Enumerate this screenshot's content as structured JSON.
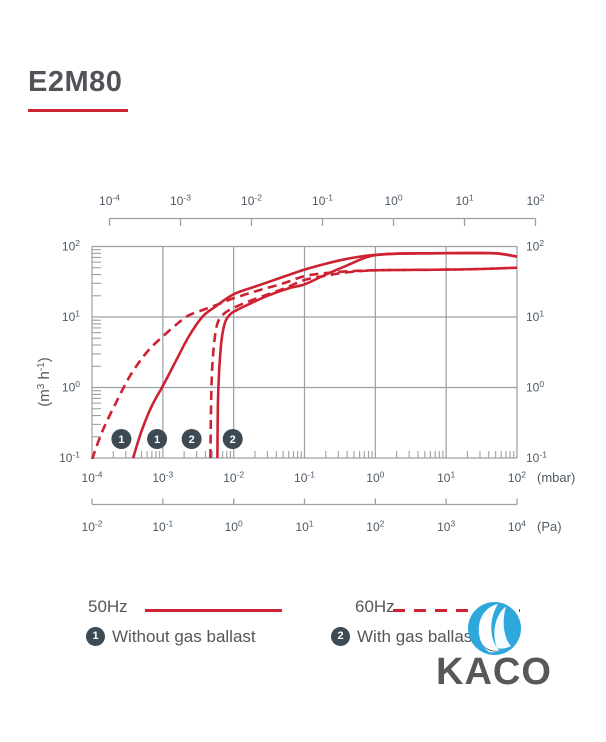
{
  "header": {
    "title": "E2M80"
  },
  "colors": {
    "accent_red": "#CE2132",
    "grid_gray": "#99A0A6",
    "axis_text": "#4E5964",
    "marker_fill": "#3D4A53",
    "logo_blue": "#2EA7DC",
    "logo_text": "#57585B"
  },
  "chart_data": {
    "type": "line",
    "x_scale": "log",
    "y_scale": "log",
    "xlim": [
      0.0001,
      100
    ],
    "ylim": [
      0.1,
      100
    ],
    "ylabel": "(m3 h-1)",
    "x_unit_primary": "(mbar)",
    "x_unit_secondary": "(Pa)",
    "grid": true,
    "x_ticks_mbar_exp": [
      -4,
      -3,
      -2,
      -1,
      0,
      1,
      2
    ],
    "x_ticks_pa_exp": [
      -2,
      -1,
      0,
      1,
      2,
      3,
      4
    ],
    "x_ticks_top_exp": [
      -4,
      -3,
      -2,
      -1,
      0,
      1,
      2
    ],
    "y_ticks_exp": [
      -1,
      0,
      1,
      2
    ],
    "series": [
      {
        "name": "50Hz without gas ballast",
        "style": "solid",
        "points": [
          [
            0.00038,
            0.1
          ],
          [
            0.0005,
            0.24
          ],
          [
            0.0007,
            0.55
          ],
          [
            0.001,
            1.05
          ],
          [
            0.0016,
            2.6
          ],
          [
            0.0023,
            5.2
          ],
          [
            0.0036,
            10
          ],
          [
            0.0055,
            14
          ],
          [
            0.01,
            21
          ],
          [
            0.02,
            27
          ],
          [
            0.05,
            37
          ],
          [
            0.1,
            47
          ],
          [
            0.2,
            57
          ],
          [
            0.4,
            67
          ],
          [
            0.85,
            75
          ],
          [
            2,
            79
          ],
          [
            6,
            80
          ],
          [
            20,
            80.5
          ],
          [
            50,
            80
          ],
          [
            100,
            72
          ]
        ]
      },
      {
        "name": "50Hz with gas ballast",
        "style": "solid",
        "points": [
          [
            0.0059,
            0.1
          ],
          [
            0.006,
            0.6
          ],
          [
            0.0063,
            2
          ],
          [
            0.0068,
            5
          ],
          [
            0.0076,
            8.5
          ],
          [
            0.009,
            11
          ],
          [
            0.011,
            12.5
          ],
          [
            0.016,
            15
          ],
          [
            0.03,
            20
          ],
          [
            0.06,
            25.5
          ],
          [
            0.1,
            29
          ],
          [
            0.2,
            40
          ],
          [
            0.4,
            54
          ],
          [
            0.85,
            73
          ],
          [
            2,
            79
          ],
          [
            6,
            80
          ],
          [
            20,
            80.5
          ],
          [
            50,
            80
          ],
          [
            100,
            72
          ]
        ]
      },
      {
        "name": "60Hz without gas ballast",
        "style": "dashed",
        "points": [
          [
            0.0001,
            0.095
          ],
          [
            0.00014,
            0.24
          ],
          [
            0.00022,
            0.62
          ],
          [
            0.00035,
            1.5
          ],
          [
            0.0006,
            3.2
          ],
          [
            0.001,
            5.3
          ],
          [
            0.0016,
            8
          ],
          [
            0.0023,
            10.5
          ],
          [
            0.004,
            13
          ],
          [
            0.007,
            16
          ],
          [
            0.01,
            18.5
          ],
          [
            0.02,
            23
          ],
          [
            0.05,
            30
          ],
          [
            0.1,
            38
          ],
          [
            0.2,
            42
          ],
          [
            0.4,
            44.5
          ],
          [
            1,
            46
          ],
          [
            3,
            46.5
          ],
          [
            10,
            47
          ],
          [
            30,
            48
          ],
          [
            100,
            50
          ]
        ]
      },
      {
        "name": "60Hz with gas ballast",
        "style": "dashed",
        "points": [
          [
            0.0047,
            0.1
          ],
          [
            0.0048,
            0.6
          ],
          [
            0.005,
            2
          ],
          [
            0.0054,
            5
          ],
          [
            0.006,
            8.5
          ],
          [
            0.0072,
            11
          ],
          [
            0.01,
            13.5
          ],
          [
            0.02,
            18
          ],
          [
            0.05,
            25
          ],
          [
            0.1,
            33.5
          ],
          [
            0.2,
            38.5
          ],
          [
            0.4,
            43
          ],
          [
            1,
            46
          ],
          [
            3,
            46.5
          ],
          [
            10,
            47
          ],
          [
            30,
            48
          ],
          [
            100,
            50
          ]
        ]
      }
    ],
    "markers": [
      {
        "label": "1",
        "x": 0.00026,
        "y": 0.186
      },
      {
        "label": "1",
        "x": 0.00083,
        "y": 0.186
      },
      {
        "label": "2",
        "x": 0.00255,
        "y": 0.186
      },
      {
        "label": "2",
        "x": 0.0097,
        "y": 0.186
      }
    ],
    "legend_position": "bottom"
  },
  "legend": {
    "freq_items": [
      {
        "label": "50Hz",
        "style": "solid"
      },
      {
        "label": "60Hz",
        "style": "dashed"
      }
    ],
    "notes": [
      {
        "marker": "1",
        "text": "Without gas ballast"
      },
      {
        "marker": "2",
        "text": "With gas ballast"
      }
    ]
  },
  "logo": {
    "text": "KACO"
  }
}
